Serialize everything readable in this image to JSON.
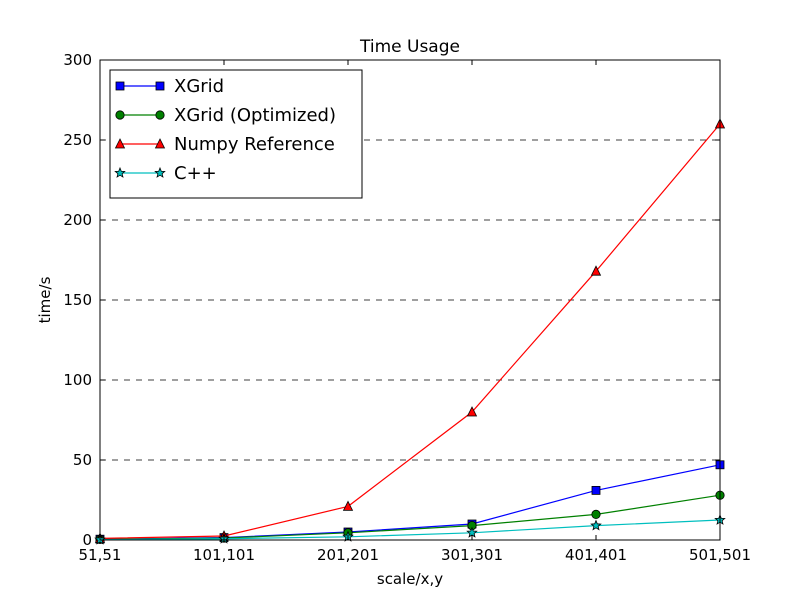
{
  "chart_data": {
    "type": "line",
    "title": "Time Usage",
    "xlabel": "scale/x,y",
    "ylabel": "time/s",
    "categories": [
      "51,51",
      "101,101",
      "201,201",
      "301,301",
      "401,401",
      "501,501"
    ],
    "ylim": [
      0,
      300
    ],
    "yticks": [
      0,
      50,
      100,
      150,
      200,
      250,
      300
    ],
    "grid": "horizontal dashed",
    "legend_position": "top-left",
    "series": [
      {
        "name": "XGrid",
        "color": "#0000ff",
        "marker": "square",
        "values": [
          0.5,
          1.5,
          5,
          10,
          31,
          47
        ]
      },
      {
        "name": "XGrid (Optimized)",
        "color": "#008000",
        "marker": "circle",
        "values": [
          0.4,
          1.2,
          4.5,
          9,
          16,
          28
        ]
      },
      {
        "name": "Numpy Reference",
        "color": "#ff0000",
        "marker": "triangle",
        "values": [
          1,
          2.5,
          21,
          80,
          168,
          260
        ]
      },
      {
        "name": "C++",
        "color": "#00bfbf",
        "marker": "star",
        "values": [
          0.2,
          0.8,
          2,
          4.5,
          9,
          12.5
        ]
      }
    ]
  }
}
